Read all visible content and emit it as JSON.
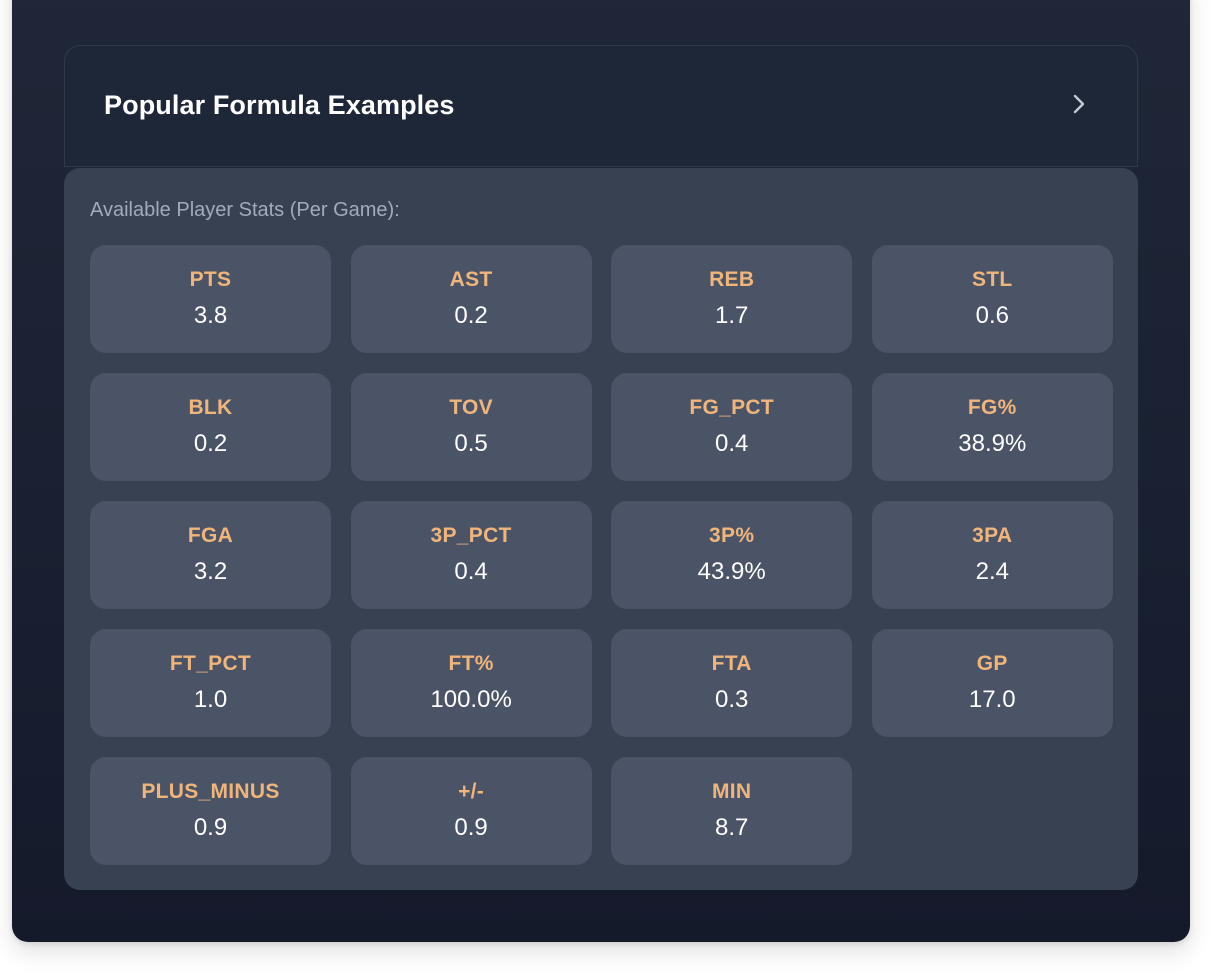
{
  "accordion": {
    "title": "Popular Formula Examples",
    "expand_icon": "chevron-right-icon"
  },
  "stats": {
    "label": "Available Player Stats (Per Game):",
    "items": [
      {
        "name": "PTS",
        "value": "3.8"
      },
      {
        "name": "AST",
        "value": "0.2"
      },
      {
        "name": "REB",
        "value": "1.7"
      },
      {
        "name": "STL",
        "value": "0.6"
      },
      {
        "name": "BLK",
        "value": "0.2"
      },
      {
        "name": "TOV",
        "value": "0.5"
      },
      {
        "name": "FG_PCT",
        "value": "0.4"
      },
      {
        "name": "FG%",
        "value": "38.9%"
      },
      {
        "name": "FGA",
        "value": "3.2"
      },
      {
        "name": "3P_PCT",
        "value": "0.4"
      },
      {
        "name": "3P%",
        "value": "43.9%"
      },
      {
        "name": "3PA",
        "value": "2.4"
      },
      {
        "name": "FT_PCT",
        "value": "1.0"
      },
      {
        "name": "FT%",
        "value": "100.0%"
      },
      {
        "name": "FTA",
        "value": "0.3"
      },
      {
        "name": "GP",
        "value": "17.0"
      },
      {
        "name": "PLUS_MINUS",
        "value": "0.9"
      },
      {
        "name": "+/-",
        "value": "0.9"
      },
      {
        "name": "MIN",
        "value": "8.7"
      }
    ]
  },
  "colors": {
    "stat_name": "#f0b57a",
    "card_bg": "#4a5466",
    "panel_bg": "#374152"
  }
}
